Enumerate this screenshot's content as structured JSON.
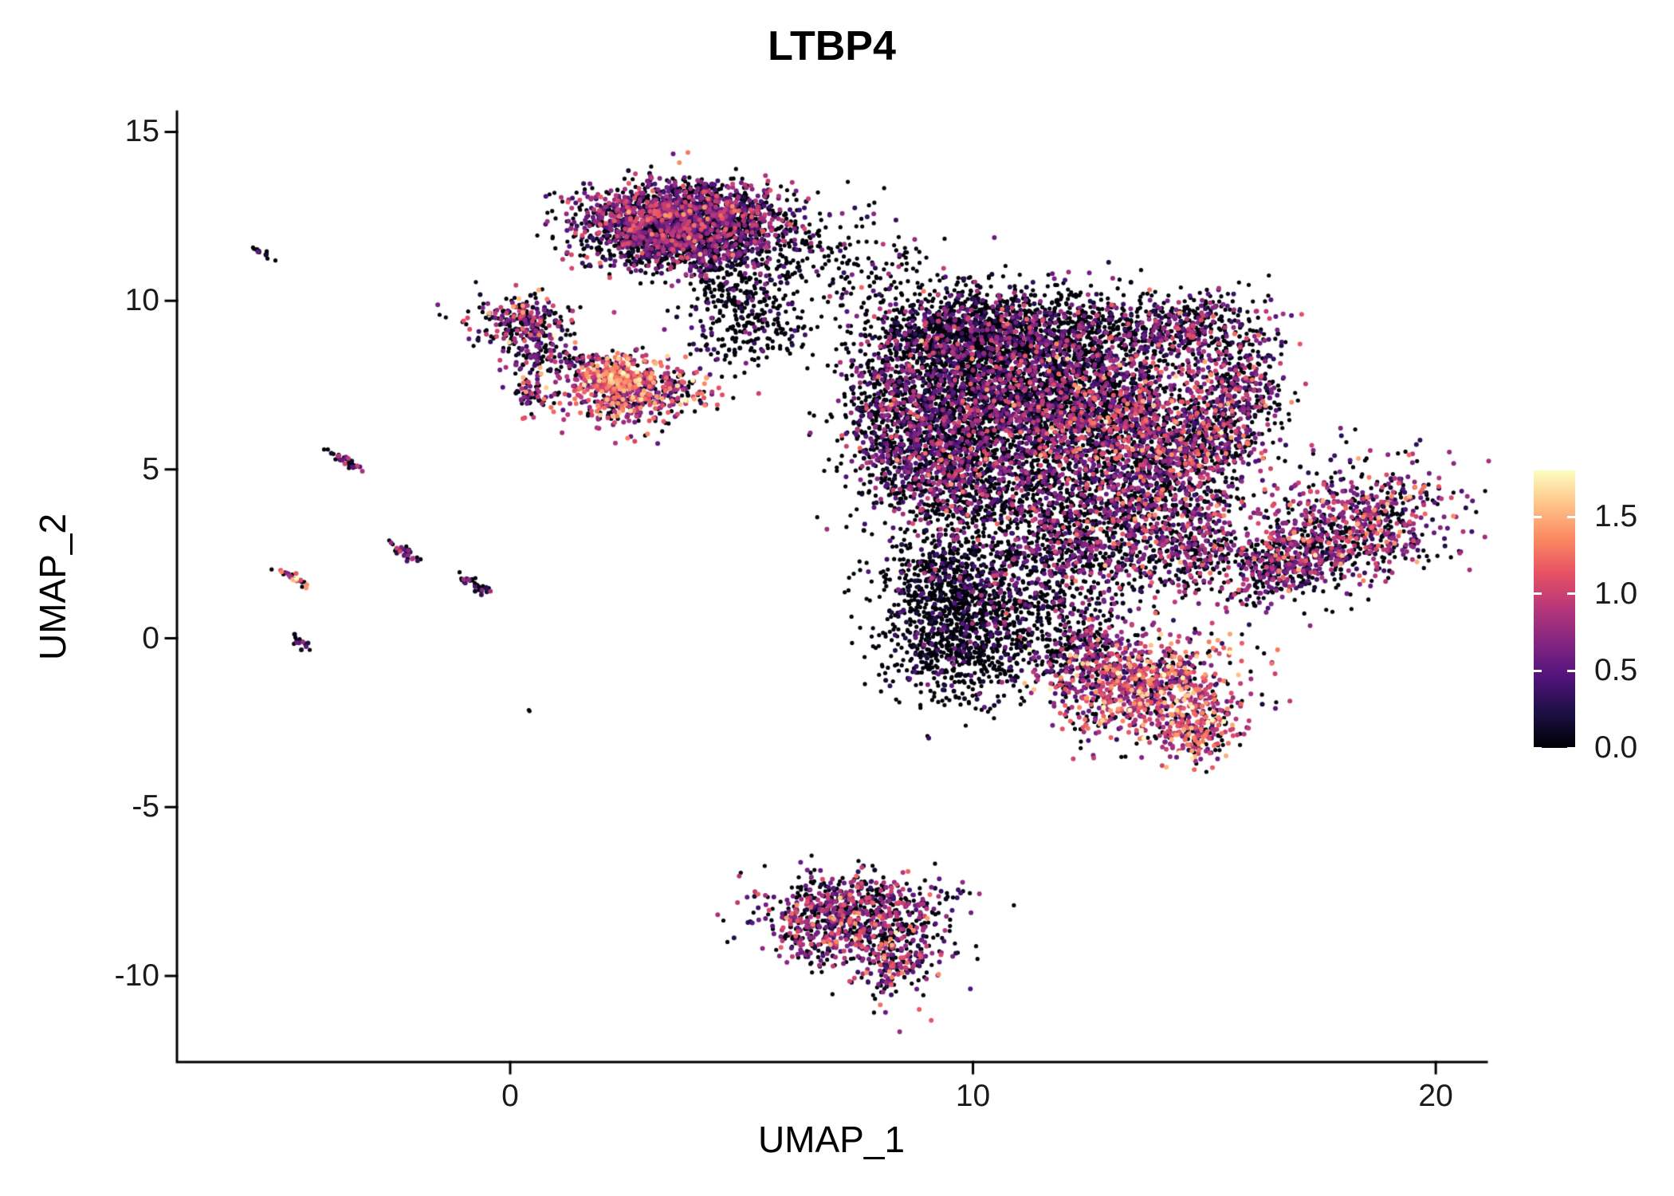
{
  "figure": {
    "background": "#ffffff"
  },
  "chart_data": {
    "type": "scatter",
    "title": "LTBP4",
    "xlabel": "UMAP_1",
    "ylabel": "UMAP_2",
    "xlim": [
      -7.2,
      21.1
    ],
    "ylim": [
      -12.55,
      15.6
    ],
    "grid": false,
    "legend_position": "right",
    "xticks": [
      {
        "v": 0,
        "label": "0"
      },
      {
        "v": 10,
        "label": "10"
      },
      {
        "v": 20,
        "label": "20"
      }
    ],
    "yticks": [
      {
        "v": -10,
        "label": "-10"
      },
      {
        "v": -5,
        "label": "-5"
      },
      {
        "v": 0,
        "label": "0"
      },
      {
        "v": 5,
        "label": "5"
      },
      {
        "v": 10,
        "label": "10"
      },
      {
        "v": 15,
        "label": "15"
      }
    ],
    "colorbar": {
      "range": [
        0,
        1.8
      ],
      "ticks": [
        {
          "v": 0.0,
          "label": "0.0"
        },
        {
          "v": 0.5,
          "label": "0.5"
        },
        {
          "v": 1.0,
          "label": "1.0"
        },
        {
          "v": 1.5,
          "label": "1.5"
        }
      ],
      "palette": "magma",
      "stops": [
        "#000004",
        "#1c1043",
        "#4f127b",
        "#812581",
        "#b5367a",
        "#e55064",
        "#fb8761",
        "#fec287",
        "#fcfdbf"
      ]
    },
    "point_count_approx": 19000,
    "clusters": [
      {
        "name": "top-main-left",
        "cx": 2.9,
        "cy": 12.4,
        "sx": 0.75,
        "sy": 0.55,
        "n": 900,
        "zero": 0.45,
        "mean": 0.65,
        "sd": 0.3
      },
      {
        "name": "top-main-right",
        "cx": 4.4,
        "cy": 12.5,
        "sx": 0.85,
        "sy": 0.5,
        "n": 900,
        "zero": 0.5,
        "mean": 0.6,
        "sd": 0.3
      },
      {
        "name": "top-main-lower",
        "cx": 3.8,
        "cy": 11.6,
        "sx": 1.0,
        "sy": 0.45,
        "n": 600,
        "zero": 0.55,
        "mean": 0.55,
        "sd": 0.3
      },
      {
        "name": "top-tail",
        "cx": 4.9,
        "cy": 10.4,
        "sx": 0.55,
        "sy": 0.8,
        "n": 300,
        "zero": 0.8,
        "mean": 0.4,
        "sd": 0.25
      },
      {
        "name": "top-tail-sparse",
        "cx": 5.6,
        "cy": 9.3,
        "sx": 0.5,
        "sy": 0.55,
        "n": 90,
        "zero": 0.85,
        "mean": 0.35,
        "sd": 0.2
      },
      {
        "name": "top-right-sparse",
        "cx": 6.6,
        "cy": 11.3,
        "sx": 0.7,
        "sy": 0.8,
        "n": 110,
        "zero": 0.85,
        "mean": 0.4,
        "sd": 0.25
      },
      {
        "name": "bridge-top",
        "cx": 8.0,
        "cy": 11.0,
        "sx": 0.6,
        "sy": 0.7,
        "n": 70,
        "zero": 0.85,
        "mean": 0.4,
        "sd": 0.25
      },
      {
        "name": "bridge-mid",
        "cx": 4.8,
        "cy": 8.7,
        "sx": 0.5,
        "sy": 0.4,
        "n": 50,
        "zero": 0.75,
        "mean": 0.45,
        "sd": 0.25
      },
      {
        "name": "left-small-top",
        "cx": 0.25,
        "cy": 9.35,
        "sx": 0.55,
        "sy": 0.42,
        "n": 260,
        "zero": 0.5,
        "mean": 0.7,
        "sd": 0.4
      },
      {
        "name": "left-small-mid",
        "cx": 0.55,
        "cy": 8.35,
        "sx": 0.3,
        "sy": 0.25,
        "n": 70,
        "zero": 0.5,
        "mean": 0.6,
        "sd": 0.35
      },
      {
        "name": "left-small-mid2",
        "cx": 1.45,
        "cy": 8.1,
        "sx": 0.25,
        "sy": 0.2,
        "n": 50,
        "zero": 0.5,
        "mean": 0.6,
        "sd": 0.35
      },
      {
        "name": "left-small-low",
        "cx": 0.4,
        "cy": 7.2,
        "sx": 0.2,
        "sy": 0.3,
        "n": 60,
        "zero": 0.45,
        "mean": 0.65,
        "sd": 0.35
      },
      {
        "name": "warm-left-cluster",
        "cx": 2.7,
        "cy": 7.3,
        "sx": 0.75,
        "sy": 0.5,
        "n": 550,
        "zero": 0.28,
        "mean": 0.95,
        "sd": 0.35
      },
      {
        "name": "warm-left-hot",
        "cx": 2.3,
        "cy": 7.7,
        "sx": 0.35,
        "sy": 0.3,
        "n": 200,
        "zero": 0.2,
        "mean": 1.15,
        "sd": 0.3
      },
      {
        "name": "central-top-left",
        "cx": 9.6,
        "cy": 9.0,
        "sx": 1.0,
        "sy": 0.75,
        "n": 1100,
        "zero": 0.72,
        "mean": 0.5,
        "sd": 0.3
      },
      {
        "name": "central-top-right",
        "cx": 11.8,
        "cy": 8.8,
        "sx": 1.2,
        "sy": 0.8,
        "n": 1200,
        "zero": 0.68,
        "mean": 0.5,
        "sd": 0.3
      },
      {
        "name": "central-top-arm",
        "cx": 14.6,
        "cy": 9.2,
        "sx": 0.8,
        "sy": 0.5,
        "n": 350,
        "zero": 0.55,
        "mean": 0.6,
        "sd": 0.3
      },
      {
        "name": "central-right-edge",
        "cx": 15.8,
        "cy": 7.6,
        "sx": 0.55,
        "sy": 0.9,
        "n": 380,
        "zero": 0.45,
        "mean": 0.65,
        "sd": 0.35
      },
      {
        "name": "central-mid-left",
        "cx": 10.4,
        "cy": 7.0,
        "sx": 1.3,
        "sy": 0.9,
        "n": 1400,
        "zero": 0.62,
        "mean": 0.55,
        "sd": 0.3
      },
      {
        "name": "central-mid-right",
        "cx": 13.0,
        "cy": 6.6,
        "sx": 1.2,
        "sy": 1.0,
        "n": 1300,
        "zero": 0.5,
        "mean": 0.7,
        "sd": 0.35
      },
      {
        "name": "central-left-protrusion",
        "cx": 8.3,
        "cy": 6.8,
        "sx": 0.55,
        "sy": 0.9,
        "n": 350,
        "zero": 0.6,
        "mean": 0.6,
        "sd": 0.3
      },
      {
        "name": "central-lower-left",
        "cx": 9.2,
        "cy": 5.2,
        "sx": 0.9,
        "sy": 0.9,
        "n": 800,
        "zero": 0.6,
        "mean": 0.6,
        "sd": 0.3
      },
      {
        "name": "central-lower-mid",
        "cx": 11.2,
        "cy": 4.3,
        "sx": 1.3,
        "sy": 1.0,
        "n": 900,
        "zero": 0.65,
        "mean": 0.55,
        "sd": 0.3
      },
      {
        "name": "central-lower-right",
        "cx": 13.9,
        "cy": 4.4,
        "sx": 0.9,
        "sy": 0.9,
        "n": 650,
        "zero": 0.45,
        "mean": 0.7,
        "sd": 0.35
      },
      {
        "name": "central-right-mid",
        "cx": 15.0,
        "cy": 5.8,
        "sx": 0.6,
        "sy": 0.8,
        "n": 350,
        "zero": 0.45,
        "mean": 0.7,
        "sd": 0.35
      },
      {
        "name": "central-black-blob",
        "cx": 9.7,
        "cy": 0.1,
        "sx": 0.8,
        "sy": 1.0,
        "n": 900,
        "zero": 0.85,
        "mean": 0.3,
        "sd": 0.2
      },
      {
        "name": "central-black-upper",
        "cx": 9.3,
        "cy": 1.9,
        "sx": 0.7,
        "sy": 0.7,
        "n": 350,
        "zero": 0.8,
        "mean": 0.35,
        "sd": 0.25
      },
      {
        "name": "central-bottom-mid",
        "cx": 11.2,
        "cy": 1.2,
        "sx": 1.0,
        "sy": 1.0,
        "n": 450,
        "zero": 0.7,
        "mean": 0.5,
        "sd": 0.3
      },
      {
        "name": "central-bottom-right",
        "cx": 12.6,
        "cy": 2.6,
        "sx": 1.0,
        "sy": 0.9,
        "n": 450,
        "zero": 0.6,
        "mean": 0.6,
        "sd": 0.3
      },
      {
        "name": "central-arm-bridge",
        "cx": 14.8,
        "cy": 2.6,
        "sx": 0.6,
        "sy": 0.7,
        "n": 250,
        "zero": 0.55,
        "mean": 0.65,
        "sd": 0.3
      },
      {
        "name": "bottom-warm-main",
        "cx": 13.7,
        "cy": -1.4,
        "sx": 1.0,
        "sy": 0.8,
        "n": 850,
        "zero": 0.22,
        "mean": 0.95,
        "sd": 0.35
      },
      {
        "name": "bottom-warm-tail",
        "cx": 14.9,
        "cy": -2.8,
        "sx": 0.45,
        "sy": 0.55,
        "n": 220,
        "zero": 0.25,
        "mean": 1.0,
        "sd": 0.35
      },
      {
        "name": "bottom-warm-bridge",
        "cx": 12.4,
        "cy": -0.4,
        "sx": 0.6,
        "sy": 0.6,
        "n": 250,
        "zero": 0.5,
        "mean": 0.6,
        "sd": 0.3
      },
      {
        "name": "right-arm-main",
        "cx": 18.2,
        "cy": 3.3,
        "sx": 1.1,
        "sy": 0.85,
        "angle": 25,
        "n": 800,
        "zero": 0.35,
        "mean": 0.7,
        "sd": 0.35
      },
      {
        "name": "right-arm-tip",
        "cx": 16.6,
        "cy": 2.2,
        "sx": 0.7,
        "sy": 0.5,
        "angle": 30,
        "n": 350,
        "zero": 0.4,
        "mean": 0.65,
        "sd": 0.35
      },
      {
        "name": "bottom-cluster-upper",
        "cx": 7.3,
        "cy": -8.0,
        "sx": 0.95,
        "sy": 0.55,
        "n": 550,
        "zero": 0.45,
        "mean": 0.7,
        "sd": 0.35
      },
      {
        "name": "bottom-cluster-lower",
        "cx": 8.3,
        "cy": -9.3,
        "sx": 0.55,
        "sy": 0.7,
        "n": 350,
        "zero": 0.4,
        "mean": 0.75,
        "sd": 0.35
      },
      {
        "name": "bottom-cluster-left",
        "cx": 6.6,
        "cy": -8.9,
        "sx": 0.45,
        "sy": 0.45,
        "n": 150,
        "zero": 0.45,
        "mean": 0.7,
        "sd": 0.3
      },
      {
        "name": "bottom-cluster-outlier",
        "cx": 9.5,
        "cy": -7.5,
        "sx": 0.25,
        "sy": 0.2,
        "n": 12,
        "zero": 0.6,
        "mean": 0.5,
        "sd": 0.3
      },
      {
        "name": "streak-1",
        "cx": -5.35,
        "cy": 11.4,
        "sx": 0.16,
        "sy": 0.045,
        "angle": -35,
        "n": 14,
        "zero": 0.75,
        "mean": 0.35,
        "sd": 0.2
      },
      {
        "name": "streak-2",
        "cx": -3.5,
        "cy": 5.2,
        "sx": 0.24,
        "sy": 0.06,
        "angle": -40,
        "n": 40,
        "zero": 0.5,
        "mean": 0.55,
        "sd": 0.3
      },
      {
        "name": "streak-3",
        "cx": -4.75,
        "cy": 1.85,
        "sx": 0.2,
        "sy": 0.06,
        "angle": -40,
        "n": 28,
        "zero": 0.25,
        "mean": 1.05,
        "sd": 0.35
      },
      {
        "name": "streak-4",
        "cx": -2.3,
        "cy": 2.55,
        "sx": 0.22,
        "sy": 0.07,
        "angle": -40,
        "n": 32,
        "zero": 0.55,
        "mean": 0.5,
        "sd": 0.3
      },
      {
        "name": "streak-5",
        "cx": -0.75,
        "cy": 1.55,
        "sx": 0.26,
        "sy": 0.07,
        "angle": -40,
        "n": 34,
        "zero": 0.65,
        "mean": 0.45,
        "sd": 0.3
      },
      {
        "name": "streak-6",
        "cx": -4.55,
        "cy": -0.1,
        "sx": 0.12,
        "sy": 0.07,
        "angle": -40,
        "n": 16,
        "zero": 0.6,
        "mean": 0.45,
        "sd": 0.3
      },
      {
        "name": "outlier-dot",
        "cx": 0.35,
        "cy": -2.1,
        "sx": 0.04,
        "sy": 0.04,
        "n": 2,
        "zero": 1.0,
        "mean": 0.0,
        "sd": 0.0
      }
    ]
  }
}
